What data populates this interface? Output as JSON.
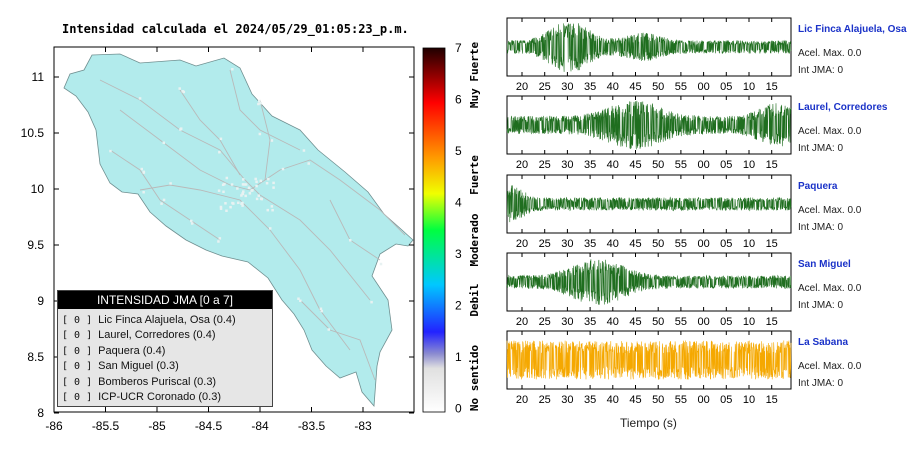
{
  "map": {
    "title": "Intensidad calculada el 2024/05/29_01:05:23_p.m.",
    "y_ticks": [
      "11",
      "10.5",
      "10",
      "9.5",
      "9",
      "8.5",
      "8"
    ],
    "x_ticks": [
      "-86",
      "-85.5",
      "-85",
      "-84.5",
      "-84",
      "-83.5",
      "-83"
    ],
    "land_color": "#b2ebec",
    "road_color": "#b9b9b9",
    "legend": {
      "title": "INTENSIDAD JMA [0 a 7]",
      "rows": [
        {
          "level": "[ 0 ]",
          "label": "Lic Finca Alajuela, Osa (0.4)"
        },
        {
          "level": "[ 0 ]",
          "label": "Laurel, Corredores (0.4)"
        },
        {
          "level": "[ 0 ]",
          "label": "Paquera (0.4)"
        },
        {
          "level": "[ 0 ]",
          "label": "San Miguel (0.3)"
        },
        {
          "level": "[ 0 ]",
          "label": "Bomberos Puriscal (0.3)"
        },
        {
          "level": "[ 0 ]",
          "label": "ICP-UCR Coronado (0.3)"
        }
      ]
    }
  },
  "scale": {
    "numbers": [
      "7",
      "6",
      "5",
      "4",
      "3",
      "2",
      "1",
      "0"
    ],
    "words": [
      "Muy Fuerte",
      "Fuerte",
      "Moderado",
      "Debil",
      "No sentido"
    ]
  },
  "waveforms": {
    "x_ticks": [
      "20",
      "25",
      "30",
      "35",
      "40",
      "45",
      "50",
      "55",
      "00",
      "05",
      "10",
      "15"
    ],
    "xlabel": "Tiempo (s)",
    "stations": [
      {
        "name": "Lic Finca Alajuela, Osa",
        "acel": "Acel. Max. 0.0",
        "jma": "Int JMA: 0",
        "color": "#1f6e1f"
      },
      {
        "name": "Laurel, Corredores",
        "acel": "Acel. Max. 0.0",
        "jma": "Int JMA: 0",
        "color": "#1f6e1f"
      },
      {
        "name": "Paquera",
        "acel": "Acel. Max. 0.0",
        "jma": "Int JMA: 0",
        "color": "#1f6e1f"
      },
      {
        "name": "San Miguel",
        "acel": "Acel. Max. 0.0",
        "jma": "Int JMA: 0",
        "color": "#1f6e1f"
      },
      {
        "name": "La Sabana",
        "acel": "Acel. Max. 0.0",
        "jma": "Int JMA: 0",
        "color": "#f5a800"
      }
    ]
  }
}
